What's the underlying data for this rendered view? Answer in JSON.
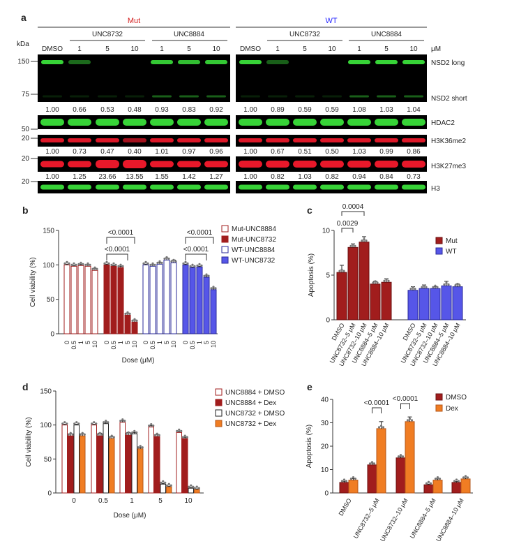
{
  "colors": {
    "mut": "#a11d1d",
    "wt": "#5656e8",
    "orange": "#f07d23",
    "darkred": "#a11d1d",
    "green": "#37d337",
    "red": "#e8182a",
    "blot_bg": "#000000",
    "mut_label": "#d42020",
    "wt_label": "#2a2aff"
  },
  "panel_a": {
    "panel_letter": "a",
    "group_labels": [
      "Mut",
      "WT"
    ],
    "kda_label": "kDa",
    "uM_label": "μM",
    "lane_drugs": [
      "UNC8732",
      "UNC8884"
    ],
    "lane_labels": [
      "DMSO",
      "1",
      "5",
      "10",
      "1",
      "5",
      "10"
    ],
    "band_names": [
      "NSD2 long",
      "NSD2 short",
      "HDAC2",
      "H3K36me2",
      "H3K27me3",
      "H3"
    ],
    "markers": {
      "blot1_top": "150",
      "blot1_mid": "75",
      "hdac2": "50",
      "h3k36": "20",
      "h3k27": "20",
      "h3": "20"
    },
    "nsd2_quant": {
      "mut": [
        "1.00",
        "0.66",
        "0.53",
        "0.48",
        "0.93",
        "0.83",
        "0.92"
      ],
      "wt": [
        "1.00",
        "0.89",
        "0.59",
        "0.59",
        "1.08",
        "1.03",
        "1.04"
      ]
    },
    "h3k36_quant": {
      "mut": [
        "1.00",
        "0.73",
        "0.47",
        "0.40",
        "1.01",
        "0.97",
        "0.96"
      ],
      "wt": [
        "1.00",
        "0.67",
        "0.51",
        "0.50",
        "1.03",
        "0.99",
        "0.86"
      ]
    },
    "h3k27_quant": {
      "mut": [
        "1.00",
        "1.25",
        "23.66",
        "13.55",
        "1.55",
        "1.42",
        "1.27"
      ],
      "wt": [
        "1.00",
        "0.82",
        "1.03",
        "0.82",
        "0.94",
        "0.84",
        "0.73"
      ]
    }
  },
  "chart_data": [
    {
      "panel": "b",
      "type": "bar",
      "ylabel": "Cell viability (%)",
      "xlabel": "Dose (μM)",
      "ylim": [
        0,
        150
      ],
      "yticks": [
        "0",
        "50",
        "100",
        "150"
      ],
      "categories": [
        "0",
        "0.5",
        "1",
        "5",
        "10"
      ],
      "series": [
        {
          "name": "Mut-UNC8884",
          "values": [
            100,
            98,
            99,
            98,
            92
          ]
        },
        {
          "name": "Mut-UNC8732",
          "values": [
            100,
            98,
            96,
            27,
            17
          ]
        },
        {
          "name": "WT-UNC8884",
          "values": [
            100,
            98,
            101,
            107,
            103
          ]
        },
        {
          "name": "WT-UNC8732",
          "values": [
            100,
            96,
            97,
            82,
            64
          ]
        }
      ],
      "annotations": [
        "<0.0001",
        "<0.0001",
        "<0.0001",
        "<0.0001"
      ]
    },
    {
      "panel": "c",
      "type": "bar",
      "ylabel": "Apoptosis (%)",
      "ylim": [
        0,
        10
      ],
      "yticks": [
        "0",
        "5",
        "10"
      ],
      "categories": [
        "DMSO",
        "UNC8732–5 μM",
        "UNC8732–10 μM",
        "UNC8884–5 μM",
        "UNC8884–10 μM"
      ],
      "series": [
        {
          "name": "Mut",
          "values": [
            5.3,
            8.1,
            8.7,
            4.0,
            4.2
          ]
        },
        {
          "name": "WT",
          "values": [
            3.3,
            3.5,
            3.5,
            3.8,
            3.7
          ]
        }
      ],
      "annotations": [
        "0.0004",
        "0.0029"
      ]
    },
    {
      "panel": "d",
      "type": "bar",
      "ylabel": "Cell viability (%)",
      "xlabel": "Dose (μM)",
      "ylim": [
        0,
        150
      ],
      "yticks": [
        "0",
        "50",
        "100",
        "150"
      ],
      "categories": [
        "0",
        "0.5",
        "1",
        "5",
        "10"
      ],
      "series": [
        {
          "name": "UNC8884 + DMSO",
          "values": [
            100,
            100,
            104,
            97,
            89
          ]
        },
        {
          "name": "UNC8884 + Dex",
          "values": [
            84,
            84,
            85,
            83,
            80
          ]
        },
        {
          "name": "UNC8732 + DMSO",
          "values": [
            100,
            102,
            87,
            13,
            7
          ]
        },
        {
          "name": "UNC8732 + Dex",
          "values": [
            84,
            80,
            65,
            9,
            5
          ]
        }
      ]
    },
    {
      "panel": "e",
      "type": "bar",
      "ylabel": "Apoptosis (%)",
      "ylim": [
        0,
        40
      ],
      "yticks": [
        "0",
        "10",
        "20",
        "30",
        "40"
      ],
      "categories": [
        "DMSO",
        "UNC8732–5 μM",
        "UNC8732–10 μM",
        "UNC8884–5 μM",
        "UNC8884–10 μM"
      ],
      "series": [
        {
          "name": "DMSO",
          "values": [
            4.5,
            12,
            15,
            3.5,
            4.5
          ]
        },
        {
          "name": "Dex",
          "values": [
            5.5,
            27.5,
            30.5,
            5.5,
            6
          ]
        }
      ],
      "annotations": [
        "<0.0001",
        "<0.0001"
      ]
    }
  ],
  "panel_letters": {
    "b": "b",
    "c": "c",
    "d": "d",
    "e": "e"
  }
}
